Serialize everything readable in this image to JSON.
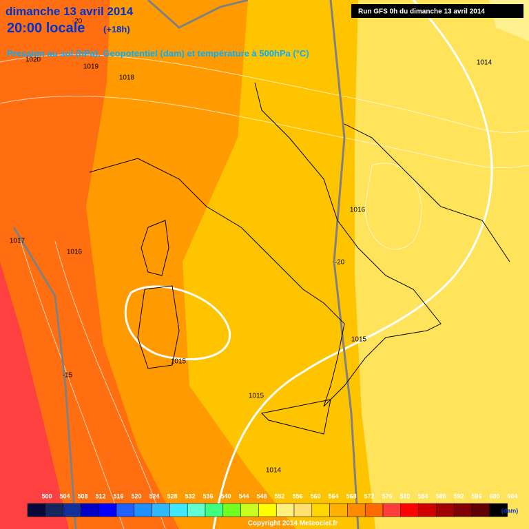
{
  "header": {
    "date": "dimanche 13 avril 2014",
    "time": "20:00 locale",
    "lead": "(+18h)",
    "subtitle": "Pression au sol (hPa), Geopotentiel (dam) et température à 500hPa (°C)",
    "run": "Run GFS 0h du dimanche 13 avril 2014"
  },
  "isobar_labels": [
    "1020",
    "1019",
    "1018",
    "1017",
    "1016",
    "1015",
    "1015",
    "1015",
    "1014",
    "1014",
    "1016"
  ],
  "temperature_labels": [
    "-20",
    "-20",
    "-15"
  ],
  "legend": {
    "values": [
      500,
      504,
      508,
      512,
      516,
      520,
      524,
      528,
      532,
      536,
      540,
      544,
      548,
      552,
      556,
      560,
      564,
      568,
      572,
      576,
      580,
      584,
      588,
      592,
      596,
      600,
      604
    ],
    "colors": [
      "#0a0a3a",
      "#14285e",
      "#10309a",
      "#0000c8",
      "#0000ff",
      "#2060ff",
      "#1e90ff",
      "#30b8ff",
      "#40e8ff",
      "#60ffd0",
      "#40ff80",
      "#70ff20",
      "#c8ff20",
      "#ffff00",
      "#fff080",
      "#ffe070",
      "#ffd700",
      "#ffb000",
      "#ff8c00",
      "#ff6a00",
      "#ff3c3c",
      "#ff0000",
      "#d00000",
      "#a00000",
      "#800000",
      "#600000",
      "#000000"
    ],
    "unit": "(dam)"
  },
  "copyright": "Copyright 2014 Meteociel.fr"
}
